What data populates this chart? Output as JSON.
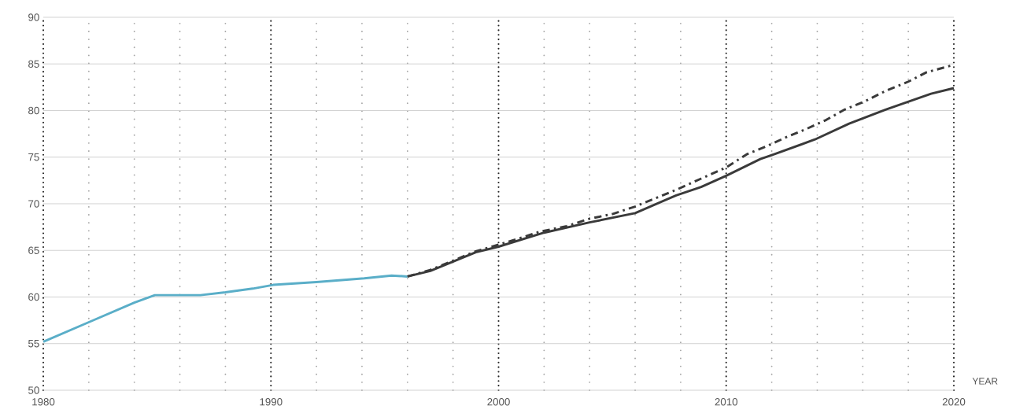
{
  "chart_data": {
    "type": "line",
    "xlabel": "YEAR",
    "xlim": [
      1980,
      2020
    ],
    "ylim": [
      50,
      90
    ],
    "xticks": [
      1980,
      {
        "value": 1982,
        "label": null
      },
      {
        "value": 1984,
        "label": null
      },
      {
        "value": 1986,
        "label": null
      },
      {
        "value": 1988,
        "label": null
      },
      1990,
      {
        "value": 1992,
        "label": null
      },
      {
        "value": 1994,
        "label": null
      },
      {
        "value": 1996,
        "label": null
      },
      {
        "value": 1998,
        "label": null
      },
      2000,
      {
        "value": 2002,
        "label": null
      },
      {
        "value": 2004,
        "label": null
      },
      {
        "value": 2006,
        "label": null
      },
      {
        "value": 2008,
        "label": null
      },
      2010,
      {
        "value": 2012,
        "label": null
      },
      {
        "value": 2014,
        "label": null
      },
      {
        "value": 2016,
        "label": null
      },
      {
        "value": 2018,
        "label": null
      },
      2020
    ],
    "yticks": [
      50,
      55,
      60,
      65,
      70,
      75,
      80,
      85,
      90
    ],
    "grid": true,
    "series": [
      {
        "color": "#5aaec8",
        "line_style": "solid",
        "x": [
          1980,
          1982,
          1984,
          1984.9,
          1986.9,
          1988,
          1989.2,
          1990.1,
          1992,
          1994.1,
          1995.3,
          1996
        ],
        "values": [
          55.2,
          57.3,
          59.4,
          60.2,
          60.2,
          60.5,
          60.9,
          61.3,
          61.6,
          62.0,
          62.3,
          62.2
        ]
      },
      {
        "color": "#3a3a3a",
        "line_style": "dashed",
        "x": [
          1996,
          1997,
          1998,
          1999,
          2000.8,
          2001.8,
          2003,
          2004,
          2005,
          2006,
          2006.9,
          2007.9,
          2008.9,
          2010,
          2010.9,
          2011.8,
          2012.6,
          2013.5,
          2014.4,
          2015.2,
          2016.1,
          2017,
          2018,
          2018.8,
          2020
        ],
        "values": [
          62.2,
          62.9,
          63.9,
          64.9,
          66.2,
          67.0,
          67.6,
          68.4,
          68.9,
          69.7,
          70.6,
          71.6,
          72.7,
          73.9,
          75.3,
          76.2,
          77.1,
          78.0,
          79.0,
          80.1,
          81.0,
          82.1,
          83.1,
          84.1,
          84.9
        ]
      },
      {
        "color": "#3a3a3a",
        "line_style": "solid",
        "x": [
          1996,
          1997,
          1998,
          1999,
          2000,
          2002,
          2004,
          2006,
          2007.8,
          2008.9,
          2010,
          2011.5,
          2012.1,
          2013.9,
          2015.4,
          2017,
          2019,
          2020
        ],
        "values": [
          62.2,
          62.8,
          63.8,
          64.8,
          65.4,
          66.9,
          68.0,
          69.0,
          70.9,
          71.8,
          73.0,
          74.8,
          75.3,
          76.9,
          78.6,
          80.1,
          81.8,
          82.4
        ]
      }
    ]
  }
}
